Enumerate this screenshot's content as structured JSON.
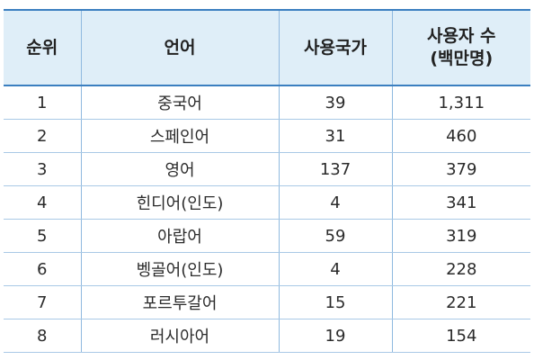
{
  "table": {
    "headers": {
      "rank": "순위",
      "language": "언어",
      "countries": "사용국가",
      "users_line1": "사용자 수",
      "users_line2": "(백만명)"
    },
    "rows": [
      {
        "rank": "1",
        "language": "중국어",
        "countries": "39",
        "users": "1,311"
      },
      {
        "rank": "2",
        "language": "스페인어",
        "countries": "31",
        "users": "460"
      },
      {
        "rank": "3",
        "language": "영어",
        "countries": "137",
        "users": "379"
      },
      {
        "rank": "4",
        "language": "힌디어(인도)",
        "countries": "4",
        "users": "341"
      },
      {
        "rank": "5",
        "language": "아랍어",
        "countries": "59",
        "users": "319"
      },
      {
        "rank": "6",
        "language": "벵골어(인도)",
        "countries": "4",
        "users": "228"
      },
      {
        "rank": "7",
        "language": "포르투갈어",
        "countries": "15",
        "users": "221"
      },
      {
        "rank": "8",
        "language": "러시아어",
        "countries": "19",
        "users": "154"
      }
    ]
  },
  "colors": {
    "header_bg": "#dfeef8",
    "rule_blue": "#3b7fc0",
    "grid_blue": "#a9c9e6"
  }
}
